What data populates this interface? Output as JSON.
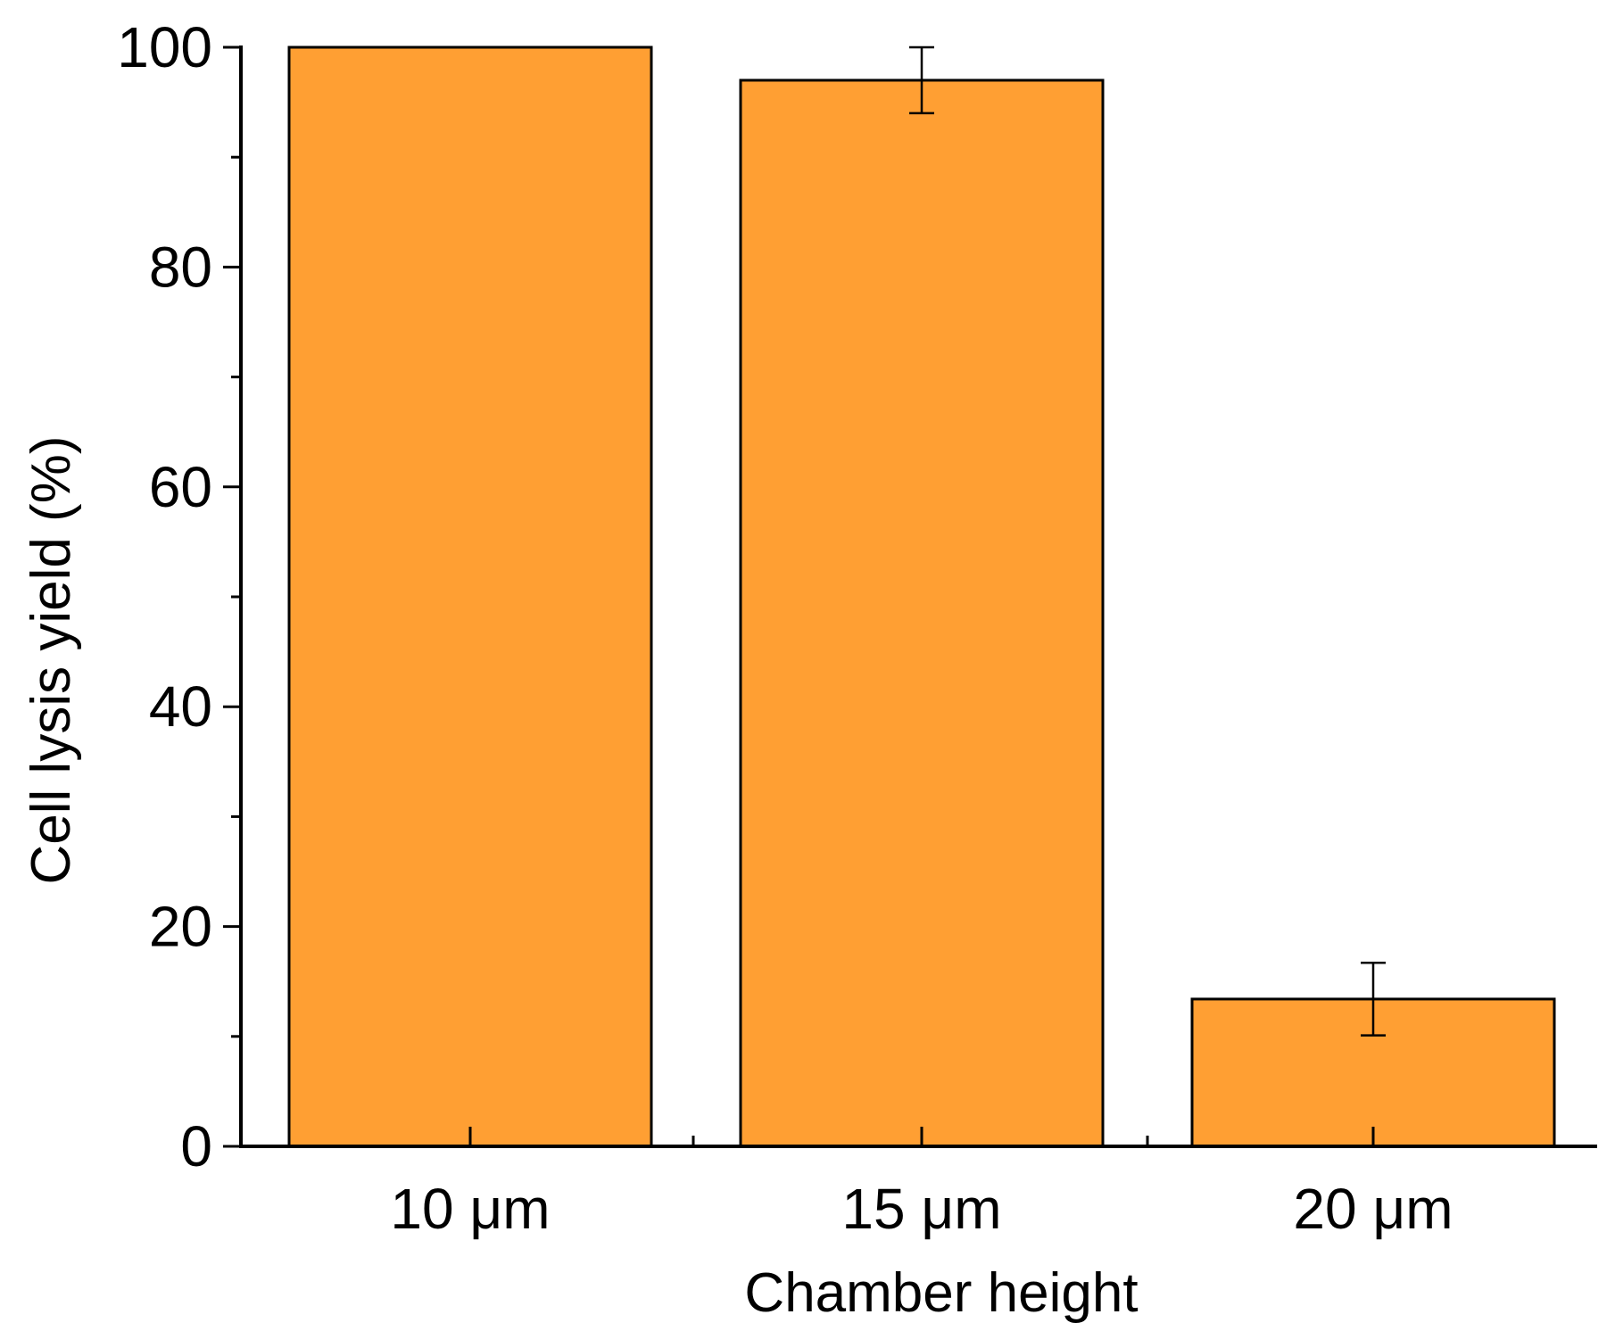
{
  "chart_data": {
    "type": "bar",
    "title": "",
    "xlabel": "Chamber height",
    "ylabel": "Cell lysis yield (%)",
    "categories": [
      "10 μm",
      "15 μm",
      "20 μm"
    ],
    "values": [
      100,
      97,
      13.4
    ],
    "error_bars": [
      0,
      3,
      3.3
    ],
    "ylim": [
      0,
      100
    ],
    "yticks": [
      0,
      20,
      40,
      60,
      80,
      100
    ],
    "yticks_minor": [
      10,
      30,
      50,
      70,
      90
    ],
    "ytick_labels": [
      "0",
      "20",
      "40",
      "60",
      "80",
      "100"
    ],
    "grid": false,
    "legend": "none",
    "bar_color": "#FF9F33",
    "edge_color": "#000000"
  }
}
